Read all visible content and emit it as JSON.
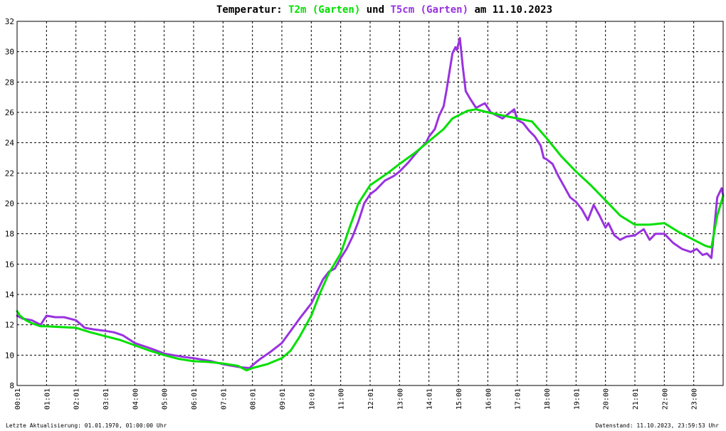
{
  "chart_data": {
    "type": "line",
    "title": {
      "prefix": "Temperatur: ",
      "series1": "T2m (Garten)",
      "mid": " und ",
      "series2": "T5cm (Garten)",
      "suffix": " am 11.10.2023"
    },
    "xlabel": "",
    "ylabel": "",
    "ylim": [
      8,
      32
    ],
    "xlim": [
      0,
      24
    ],
    "y_ticks": [
      "8",
      "10",
      "12",
      "14",
      "16",
      "18",
      "20",
      "22",
      "24",
      "26",
      "28",
      "30",
      "32"
    ],
    "x_ticks": [
      "00:01",
      "01:01",
      "02:01",
      "03:01",
      "04:00",
      "05:00",
      "06:01",
      "07:01",
      "08:01",
      "09:01",
      "10:01",
      "11:00",
      "12:01",
      "13:00",
      "14:01",
      "15:00",
      "16:00",
      "17:01",
      "18:00",
      "19:01",
      "20:00",
      "21:01",
      "22:00",
      "23:00"
    ],
    "grid": true,
    "footer_left": "Letzte Aktualisierung: 01.01.1970, 01:00:00 Uhr",
    "footer_right": "Datenstand: 11.10.2023, 23:59:53 Uhr",
    "colors": {
      "T2m": "#00e000",
      "T5cm": "#9932e0",
      "axis": "#000000",
      "grid": "#000000"
    },
    "series": [
      {
        "name": "T2m (Garten)",
        "x": [
          0.0,
          0.1,
          0.3,
          0.5,
          0.8,
          1.0,
          1.5,
          2.0,
          2.5,
          3.0,
          3.5,
          4.0,
          4.5,
          5.0,
          5.5,
          6.0,
          6.5,
          7.0,
          7.5,
          7.8,
          8.0,
          8.5,
          9.0,
          9.3,
          9.6,
          10.0,
          10.3,
          10.6,
          11.0,
          11.3,
          11.6,
          12.0,
          12.3,
          12.6,
          13.0,
          13.5,
          14.0,
          14.5,
          14.8,
          15.0,
          15.3,
          15.6,
          16.0,
          16.5,
          17.0,
          17.5,
          18.0,
          18.5,
          19.0,
          19.5,
          20.0,
          20.5,
          21.0,
          21.5,
          22.0,
          22.5,
          23.0,
          23.4,
          23.6,
          23.8,
          24.0
        ],
        "values": [
          12.9,
          12.6,
          12.3,
          12.1,
          11.9,
          11.9,
          11.85,
          11.8,
          11.5,
          11.25,
          11.0,
          10.65,
          10.3,
          10.0,
          9.75,
          9.6,
          9.55,
          9.45,
          9.3,
          9.0,
          9.15,
          9.4,
          9.8,
          10.3,
          11.2,
          12.6,
          14.1,
          15.4,
          16.7,
          18.4,
          20.0,
          21.2,
          21.6,
          22.0,
          22.6,
          23.3,
          24.1,
          24.9,
          25.6,
          25.8,
          26.1,
          26.2,
          26.0,
          25.8,
          25.6,
          25.4,
          24.3,
          23.1,
          22.1,
          21.2,
          20.2,
          19.2,
          18.6,
          18.6,
          18.7,
          18.1,
          17.6,
          17.2,
          17.1,
          19.2,
          20.5
        ]
      },
      {
        "name": "T5cm (Garten)",
        "x": [
          0.0,
          0.2,
          0.5,
          0.8,
          1.0,
          1.3,
          1.6,
          2.0,
          2.3,
          2.6,
          3.0,
          3.3,
          3.6,
          4.0,
          4.3,
          4.6,
          5.0,
          5.3,
          5.6,
          6.0,
          6.3,
          6.6,
          7.0,
          7.3,
          7.6,
          7.9,
          8.1,
          8.3,
          8.6,
          9.0,
          9.3,
          9.6,
          10.0,
          10.2,
          10.4,
          10.6,
          10.8,
          11.0,
          11.2,
          11.4,
          11.6,
          11.8,
          12.0,
          12.2,
          12.5,
          12.8,
          13.0,
          13.3,
          13.6,
          13.9,
          14.0,
          14.2,
          14.35,
          14.5,
          14.6,
          14.7,
          14.8,
          14.9,
          14.95,
          15.05,
          15.15,
          15.25,
          15.4,
          15.6,
          15.9,
          16.1,
          16.3,
          16.5,
          16.7,
          16.9,
          17.0,
          17.2,
          17.4,
          17.6,
          17.8,
          17.9,
          18.0,
          18.2,
          18.4,
          18.6,
          18.8,
          19.0,
          19.2,
          19.4,
          19.6,
          19.8,
          20.0,
          20.1,
          20.3,
          20.5,
          20.7,
          21.0,
          21.3,
          21.5,
          21.7,
          22.0,
          22.3,
          22.6,
          22.9,
          23.1,
          23.3,
          23.45,
          23.6,
          23.8,
          23.95,
          24.0
        ],
        "values": [
          12.6,
          12.4,
          12.3,
          12.0,
          12.6,
          12.5,
          12.5,
          12.3,
          11.8,
          11.7,
          11.6,
          11.5,
          11.3,
          10.8,
          10.6,
          10.4,
          10.1,
          10.0,
          9.9,
          9.8,
          9.7,
          9.6,
          9.4,
          9.3,
          9.2,
          9.15,
          9.5,
          9.8,
          10.2,
          10.8,
          11.6,
          12.4,
          13.4,
          14.2,
          15.0,
          15.5,
          15.7,
          16.4,
          17.0,
          17.8,
          18.8,
          20.0,
          20.6,
          20.9,
          21.5,
          21.8,
          22.1,
          22.7,
          23.4,
          24.0,
          24.4,
          24.9,
          25.8,
          26.4,
          27.5,
          28.7,
          29.9,
          30.3,
          30.1,
          30.9,
          29.0,
          27.4,
          26.9,
          26.3,
          26.6,
          26.0,
          25.8,
          25.6,
          25.9,
          26.2,
          25.5,
          25.3,
          24.8,
          24.4,
          23.8,
          23.0,
          22.9,
          22.6,
          21.8,
          21.1,
          20.4,
          20.1,
          19.6,
          18.9,
          19.9,
          19.2,
          18.4,
          18.7,
          17.9,
          17.6,
          17.8,
          17.9,
          18.3,
          17.6,
          18.0,
          18.0,
          17.4,
          17.0,
          16.8,
          17.0,
          16.6,
          16.7,
          16.4,
          20.4,
          21.0,
          20.5
        ]
      }
    ]
  }
}
